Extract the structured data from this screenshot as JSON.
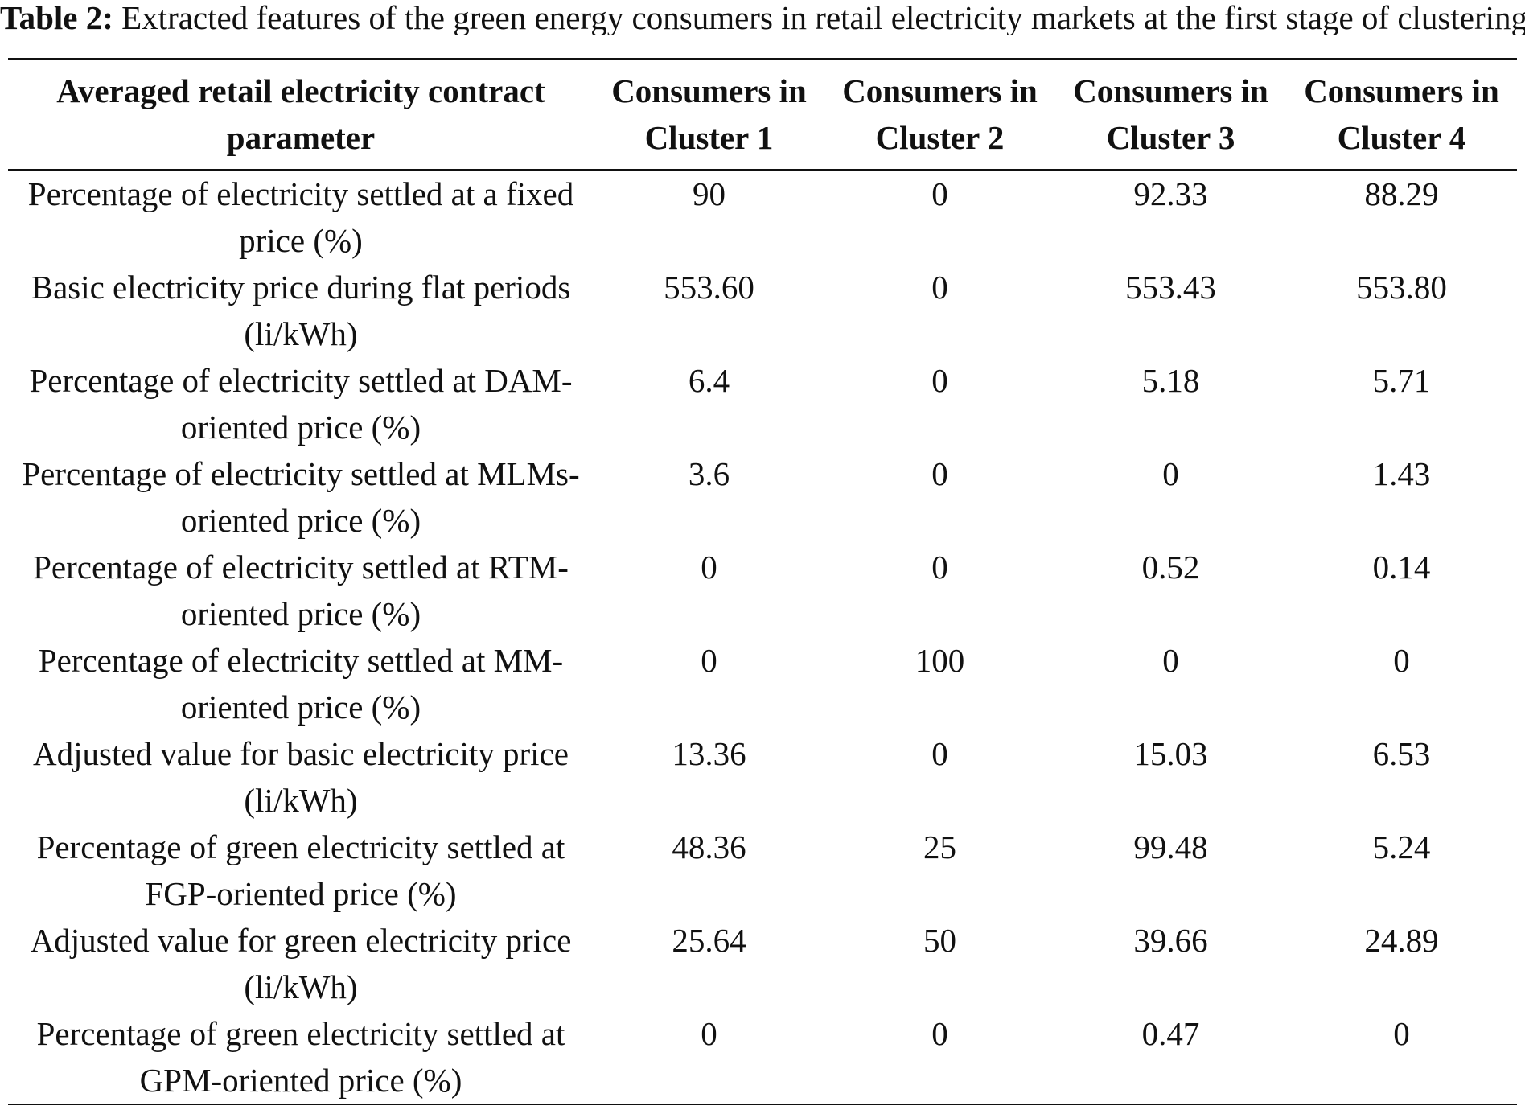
{
  "caption": {
    "label": "Table 2:",
    "text": "Extracted features of the green energy consumers in retail electricity markets at the first stage of clustering"
  },
  "table": {
    "headers": [
      "Averaged retail electricity contract parameter",
      "Consumers in Cluster 1",
      "Consumers in Cluster 2",
      "Consumers in Cluster 3",
      "Consumers in Cluster 4"
    ],
    "rows": [
      [
        "Percentage of electricity settled at a fixed price (%)",
        "90",
        "0",
        "92.33",
        "88.29"
      ],
      [
        "Basic electricity price during flat periods (li/kWh)",
        "553.60",
        "0",
        "553.43",
        "553.80"
      ],
      [
        "Percentage of electricity settled at DAM-oriented price (%)",
        "6.4",
        "0",
        "5.18",
        "5.71"
      ],
      [
        "Percentage of electricity settled at MLMs-oriented price (%)",
        "3.6",
        "0",
        "0",
        "1.43"
      ],
      [
        "Percentage of electricity settled at RTM-oriented price (%)",
        "0",
        "0",
        "0.52",
        "0.14"
      ],
      [
        "Percentage of electricity settled at MM-oriented price (%)",
        "0",
        "100",
        "0",
        "0"
      ],
      [
        "Adjusted value for basic electricity price (li/kWh)",
        "13.36",
        "0",
        "15.03",
        "6.53"
      ],
      [
        "Percentage of green electricity settled at FGP-oriented price (%)",
        "48.36",
        "25",
        "99.48",
        "5.24"
      ],
      [
        "Adjusted value for green electricity price (li/kWh)",
        "25.64",
        "50",
        "39.66",
        "24.89"
      ],
      [
        "Percentage of green electricity settled at GPM-oriented price (%)",
        "0",
        "0",
        "0.47",
        "0"
      ]
    ]
  }
}
